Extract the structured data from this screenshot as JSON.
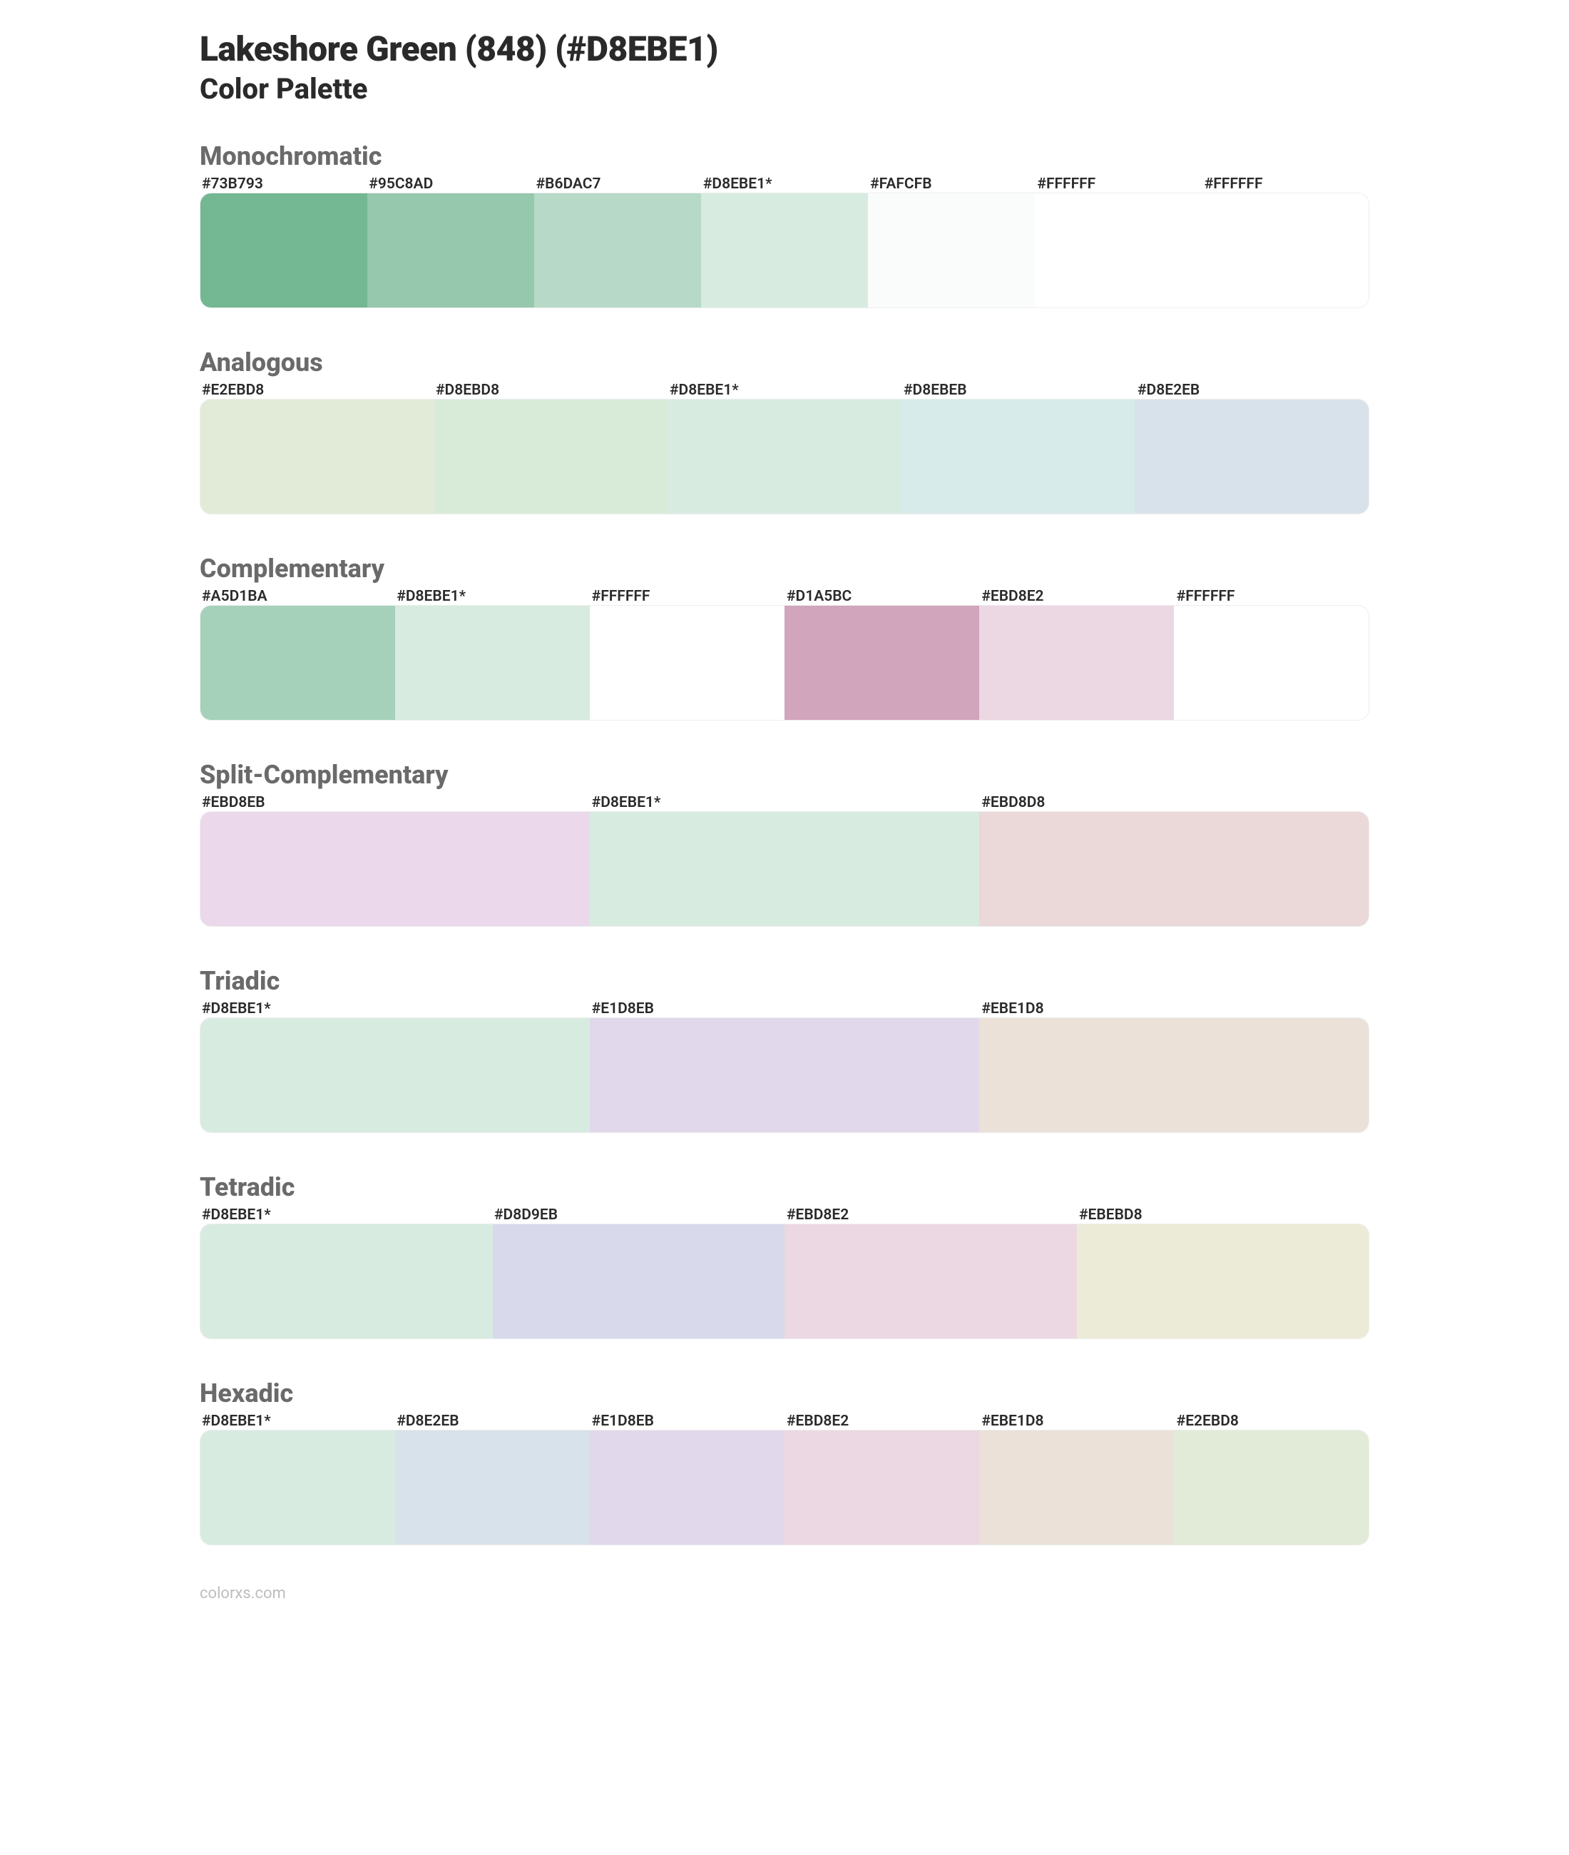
{
  "header": {
    "title": "Lakeshore Green (848) (#D8EBE1)",
    "subtitle": "Color Palette"
  },
  "palettes": [
    {
      "title": "Monochromatic",
      "swatches": [
        {
          "label": "#73B793",
          "color": "#73B793"
        },
        {
          "label": "#95C8AD",
          "color": "#95C8AD"
        },
        {
          "label": "#B6DAC7",
          "color": "#B6DAC7"
        },
        {
          "label": "#D8EBE1*",
          "color": "#D8EBE1"
        },
        {
          "label": "#FAFCFB",
          "color": "#FAFCFB"
        },
        {
          "label": "#FFFFFF",
          "color": "#FFFFFF"
        },
        {
          "label": "#FFFFFF",
          "color": "#FFFFFF"
        }
      ]
    },
    {
      "title": "Analogous",
      "swatches": [
        {
          "label": "#E2EBD8",
          "color": "#E2EBD8"
        },
        {
          "label": "#D8EBD8",
          "color": "#D8EBD8"
        },
        {
          "label": "#D8EBE1*",
          "color": "#D8EBE1"
        },
        {
          "label": "#D8EBEB",
          "color": "#D8EBEB"
        },
        {
          "label": "#D8E2EB",
          "color": "#D8E2EB"
        }
      ]
    },
    {
      "title": "Complementary",
      "swatches": [
        {
          "label": "#A5D1BA",
          "color": "#A5D1BA"
        },
        {
          "label": "#D8EBE1*",
          "color": "#D8EBE1"
        },
        {
          "label": "#FFFFFF",
          "color": "#FFFFFF"
        },
        {
          "label": "#D1A5BC",
          "color": "#D1A5BC"
        },
        {
          "label": "#EBD8E2",
          "color": "#EBD8E2"
        },
        {
          "label": "#FFFFFF",
          "color": "#FFFFFF"
        }
      ]
    },
    {
      "title": "Split-Complementary",
      "swatches": [
        {
          "label": "#EBD8EB",
          "color": "#EBD8EB"
        },
        {
          "label": "#D8EBE1*",
          "color": "#D8EBE1"
        },
        {
          "label": "#EBD8D8",
          "color": "#EBD8D8"
        }
      ]
    },
    {
      "title": "Triadic",
      "swatches": [
        {
          "label": "#D8EBE1*",
          "color": "#D8EBE1"
        },
        {
          "label": "#E1D8EB",
          "color": "#E1D8EB"
        },
        {
          "label": "#EBE1D8",
          "color": "#EBE1D8"
        }
      ]
    },
    {
      "title": "Tetradic",
      "swatches": [
        {
          "label": "#D8EBE1*",
          "color": "#D8EBE1"
        },
        {
          "label": "#D8D9EB",
          "color": "#D8D9EB"
        },
        {
          "label": "#EBD8E2",
          "color": "#EBD8E2"
        },
        {
          "label": "#EBEBD8",
          "color": "#EBEBD8"
        }
      ]
    },
    {
      "title": "Hexadic",
      "swatches": [
        {
          "label": "#D8EBE1*",
          "color": "#D8EBE1"
        },
        {
          "label": "#D8E2EB",
          "color": "#D8E2EB"
        },
        {
          "label": "#E1D8EB",
          "color": "#E1D8EB"
        },
        {
          "label": "#EBD8E2",
          "color": "#EBD8E2"
        },
        {
          "label": "#EBE1D8",
          "color": "#EBE1D8"
        },
        {
          "label": "#E2EBD8",
          "color": "#E2EBD8"
        }
      ]
    }
  ],
  "footer": "colorxs.com"
}
